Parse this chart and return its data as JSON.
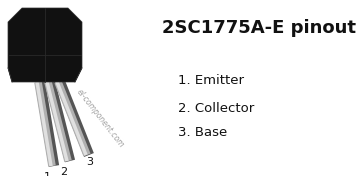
{
  "title": "2SC1775A-E pinout",
  "pin1_label": "1. Emitter",
  "pin2_label": "2. Collector",
  "pin3_label": "3. Base",
  "watermark": "el-component.com",
  "bg_color": "#ffffff",
  "body_color": "#111111",
  "lead_light": "#e0e0e0",
  "lead_mid": "#b0b0b0",
  "lead_dark": "#555555",
  "title_fontsize": 13,
  "pin_fontsize": 9.5,
  "pin_number_fontsize": 8,
  "watermark_fontsize": 5.5,
  "fig_width": 3.63,
  "fig_height": 1.76,
  "dpi": 100
}
